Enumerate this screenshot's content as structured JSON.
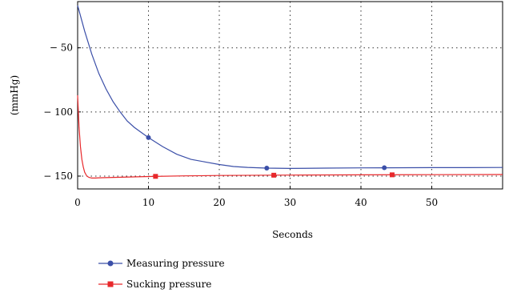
{
  "chart_data": {
    "type": "line",
    "xlabel": "Seconds",
    "ylabel": "(mmHg)",
    "xlim": [
      0,
      60
    ],
    "ylim": [
      -160,
      -14
    ],
    "x_ticks": [
      0,
      10,
      20,
      30,
      40,
      50
    ],
    "x_tick_labels": [
      "0",
      "10",
      "20",
      "30",
      "40",
      "50"
    ],
    "y_ticks": [
      -50,
      -100,
      -150
    ],
    "y_tick_labels": [
      "− 50",
      "− 100",
      "− 150"
    ],
    "grid": "dotted",
    "legend_position": "bottom-left",
    "series": [
      {
        "name": "Measuring pressure",
        "color": "#3b4fa8",
        "marker": "circle",
        "x": [
          0,
          1,
          2,
          3,
          4,
          5,
          6,
          7,
          8,
          9,
          10,
          12,
          14,
          16,
          18,
          20,
          22,
          24,
          26.7,
          30,
          35,
          40,
          43.3,
          50,
          55,
          60
        ],
        "y": [
          -17,
          -37,
          -55,
          -70,
          -82,
          -92,
          -100,
          -107,
          -112,
          -116,
          -120,
          -127,
          -133,
          -137,
          -139,
          -141,
          -142.5,
          -143.2,
          -143.8,
          -144,
          -143.8,
          -143.6,
          -143.5,
          -143.4,
          -143.4,
          -143.3
        ],
        "markers": [
          {
            "x": 10,
            "y": -120
          },
          {
            "x": 26.7,
            "y": -143.8
          },
          {
            "x": 43.3,
            "y": -143.5
          }
        ]
      },
      {
        "name": "Sucking pressure",
        "color": "#e8282b",
        "marker": "square",
        "x": [
          0,
          0.2,
          0.4,
          0.6,
          0.8,
          1,
          1.3,
          1.6,
          2,
          2.5,
          3,
          5,
          10,
          15,
          20,
          30,
          40,
          50,
          60
        ],
        "y": [
          -87,
          -112,
          -127,
          -137,
          -143,
          -147,
          -150,
          -151,
          -151.5,
          -151.5,
          -151.3,
          -151,
          -150.3,
          -149.8,
          -149.5,
          -149.2,
          -149,
          -148.9,
          -148.8
        ],
        "markers": [
          {
            "x": 11,
            "y": -150.2
          },
          {
            "x": 27.7,
            "y": -149.3
          },
          {
            "x": 44.4,
            "y": -149
          }
        ]
      }
    ]
  }
}
